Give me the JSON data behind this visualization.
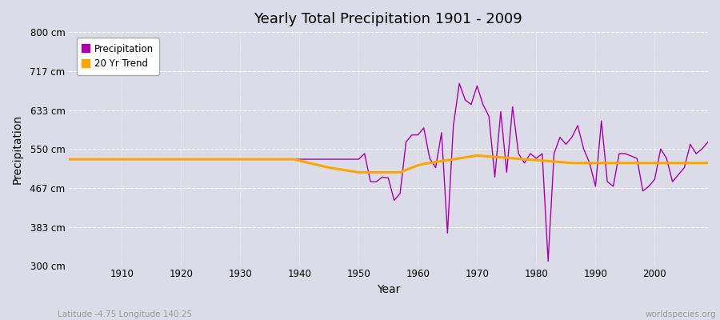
{
  "title": "Yearly Total Precipitation 1901 - 2009",
  "xlabel": "Year",
  "ylabel": "Precipitation",
  "subtitle_left": "Latitude -4.75 Longitude 140.25",
  "subtitle_right": "worldspecies.org",
  "ylim": [
    300,
    800
  ],
  "yticks": [
    300,
    383,
    467,
    550,
    633,
    717,
    800
  ],
  "ytick_labels": [
    "300 cm",
    "383 cm",
    "467 cm",
    "550 cm",
    "633 cm",
    "717 cm",
    "800 cm"
  ],
  "xlim": [
    1901,
    2009
  ],
  "xticks": [
    1910,
    1920,
    1930,
    1940,
    1950,
    1960,
    1970,
    1980,
    1990,
    2000
  ],
  "precip_color": "#aa00aa",
  "trend_color": "#ffa500",
  "bg_color": "#dcdce8",
  "grid_color": "#f0f0f5",
  "legend_labels": [
    "Precipitation",
    "20 Yr Trend"
  ],
  "years": [
    1901,
    1902,
    1903,
    1904,
    1905,
    1906,
    1907,
    1908,
    1909,
    1910,
    1911,
    1912,
    1913,
    1914,
    1915,
    1916,
    1917,
    1918,
    1919,
    1920,
    1921,
    1922,
    1923,
    1924,
    1925,
    1926,
    1927,
    1928,
    1929,
    1930,
    1931,
    1932,
    1933,
    1934,
    1935,
    1936,
    1937,
    1938,
    1939,
    1940,
    1941,
    1942,
    1943,
    1944,
    1945,
    1946,
    1947,
    1948,
    1949,
    1950,
    1951,
    1952,
    1953,
    1954,
    1955,
    1956,
    1957,
    1958,
    1959,
    1960,
    1961,
    1962,
    1963,
    1964,
    1965,
    1966,
    1967,
    1968,
    1969,
    1970,
    1971,
    1972,
    1973,
    1974,
    1975,
    1976,
    1977,
    1978,
    1979,
    1980,
    1981,
    1982,
    1983,
    1984,
    1985,
    1986,
    1987,
    1988,
    1989,
    1990,
    1991,
    1992,
    1993,
    1994,
    1995,
    1996,
    1997,
    1998,
    1999,
    2000,
    2001,
    2002,
    2003,
    2004,
    2005,
    2006,
    2007,
    2008,
    2009
  ],
  "precip": [
    528,
    528,
    528,
    528,
    528,
    528,
    528,
    528,
    528,
    528,
    528,
    528,
    528,
    528,
    528,
    528,
    528,
    528,
    528,
    528,
    528,
    528,
    528,
    528,
    528,
    528,
    528,
    528,
    528,
    528,
    528,
    528,
    528,
    528,
    528,
    528,
    528,
    528,
    528,
    528,
    528,
    528,
    528,
    528,
    528,
    528,
    528,
    528,
    528,
    528,
    540,
    480,
    480,
    490,
    488,
    440,
    455,
    565,
    580,
    580,
    595,
    530,
    510,
    585,
    370,
    600,
    690,
    655,
    645,
    685,
    645,
    620,
    490,
    630,
    500,
    640,
    540,
    520,
    540,
    530,
    540,
    310,
    540,
    575,
    560,
    575,
    600,
    550,
    520,
    470,
    610,
    480,
    470,
    540,
    540,
    535,
    530,
    460,
    470,
    485,
    550,
    530,
    480,
    495,
    510,
    560,
    540,
    550,
    565
  ],
  "trend": [
    528,
    528,
    528,
    528,
    528,
    528,
    528,
    528,
    528,
    528,
    528,
    528,
    528,
    528,
    528,
    528,
    528,
    528,
    528,
    528,
    528,
    528,
    528,
    528,
    528,
    528,
    528,
    528,
    528,
    528,
    528,
    528,
    528,
    528,
    528,
    528,
    528,
    528,
    528,
    525,
    522,
    519,
    516,
    513,
    510,
    508,
    506,
    504,
    502,
    500,
    500,
    500,
    500,
    500,
    500,
    500,
    500,
    505,
    510,
    515,
    518,
    520,
    522,
    524,
    526,
    528,
    530,
    532,
    534,
    536,
    535,
    534,
    533,
    532,
    531,
    530,
    529,
    528,
    527,
    526,
    525,
    524,
    523,
    522,
    521,
    520,
    520,
    520,
    520,
    520,
    520,
    520,
    520,
    520,
    520,
    520,
    520,
    520,
    520,
    520,
    520,
    520,
    520,
    520,
    520,
    520,
    520,
    520,
    520
  ]
}
